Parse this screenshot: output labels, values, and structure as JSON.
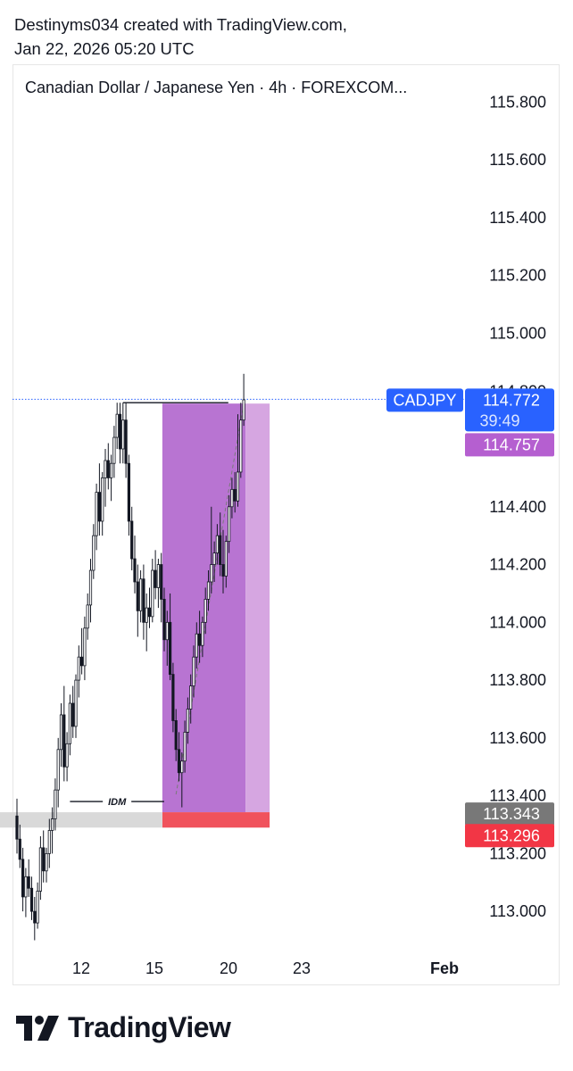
{
  "header": {
    "line1": "Destinyms034 created with TradingView.com,",
    "line2": "Jan 22, 2026 05:20 UTC"
  },
  "symbol_title": "Canadian Dollar / Japanese Yen · 4h · FOREXCOM...",
  "footer": {
    "brand": "TradingView"
  },
  "colors": {
    "price_tag": "#2962ff",
    "purple_tag": "#b55fd0",
    "gray_tag": "#787878",
    "red_tag": "#f23645",
    "zone_dark": "#b874d2",
    "zone_light": "#d6a6e1",
    "stop_zone": "#f0525c",
    "demand_zone": "#d9d9d9"
  },
  "chart_data": {
    "type": "candlestick",
    "symbol": "CADJPY",
    "timeframe": "4h",
    "ylim": [
      112.88,
      115.86
    ],
    "y_ticks": [
      "115.800",
      "115.600",
      "115.400",
      "115.200",
      "115.000",
      "114.800",
      "114.600",
      "114.400",
      "114.200",
      "114.000",
      "113.800",
      "113.600",
      "113.400",
      "113.200",
      "113.000"
    ],
    "x_ticks": [
      "12",
      "15",
      "20",
      "23",
      "Feb"
    ],
    "last_price": {
      "label": "CADJPY",
      "value": "114.772",
      "countdown": "39:49"
    },
    "price_tags": [
      {
        "value": "114.757",
        "kind": "purple"
      },
      {
        "value": "113.343",
        "kind": "gray"
      },
      {
        "value": "113.296",
        "kind": "red"
      }
    ],
    "annotations": {
      "idm_label": "IDM"
    },
    "idm_level": 113.38,
    "prior_high": 114.76,
    "long_position": {
      "entry": 113.343,
      "stop": 113.296,
      "target": 114.757
    },
    "candles": [
      [
        113.33,
        113.39,
        113.2,
        113.25
      ],
      [
        113.25,
        113.3,
        113.15,
        113.18
      ],
      [
        113.18,
        113.22,
        113.0,
        113.05
      ],
      [
        113.05,
        113.15,
        112.98,
        113.12
      ],
      [
        113.12,
        113.18,
        113.05,
        113.08
      ],
      [
        113.08,
        113.12,
        112.97,
        113.0
      ],
      [
        113.0,
        113.05,
        112.9,
        112.96
      ],
      [
        112.96,
        113.1,
        112.94,
        113.07
      ],
      [
        113.07,
        113.26,
        113.04,
        113.22
      ],
      [
        113.22,
        113.28,
        113.1,
        113.14
      ],
      [
        113.14,
        113.22,
        113.1,
        113.2
      ],
      [
        113.2,
        113.32,
        113.15,
        113.28
      ],
      [
        113.28,
        113.36,
        113.2,
        113.32
      ],
      [
        113.32,
        113.46,
        113.28,
        113.42
      ],
      [
        113.42,
        113.6,
        113.36,
        113.56
      ],
      [
        113.56,
        113.72,
        113.5,
        113.68
      ],
      [
        113.68,
        113.78,
        113.45,
        113.5
      ],
      [
        113.5,
        113.62,
        113.45,
        113.58
      ],
      [
        113.58,
        113.75,
        113.54,
        113.72
      ],
      [
        113.72,
        113.78,
        113.6,
        113.64
      ],
      [
        113.64,
        113.82,
        113.6,
        113.8
      ],
      [
        113.8,
        113.92,
        113.74,
        113.88
      ],
      [
        113.88,
        113.98,
        113.82,
        113.85
      ],
      [
        113.85,
        114.02,
        113.8,
        113.98
      ],
      [
        113.98,
        114.1,
        113.94,
        114.06
      ],
      [
        114.06,
        114.22,
        114.0,
        114.18
      ],
      [
        114.18,
        114.34,
        114.15,
        114.3
      ],
      [
        114.3,
        114.48,
        114.25,
        114.45
      ],
      [
        114.45,
        114.55,
        114.3,
        114.35
      ],
      [
        114.35,
        114.52,
        114.3,
        114.5
      ],
      [
        114.5,
        114.6,
        114.4,
        114.56
      ],
      [
        114.56,
        114.62,
        114.46,
        114.5
      ],
      [
        114.5,
        114.58,
        114.42,
        114.55
      ],
      [
        114.55,
        114.68,
        114.5,
        114.64
      ],
      [
        114.64,
        114.76,
        114.6,
        114.72
      ],
      [
        114.72,
        114.76,
        114.55,
        114.6
      ],
      [
        114.6,
        114.76,
        114.55,
        114.7
      ],
      [
        114.7,
        114.76,
        114.5,
        114.55
      ],
      [
        114.55,
        114.58,
        114.3,
        114.35
      ],
      [
        114.35,
        114.4,
        114.18,
        114.22
      ],
      [
        114.22,
        114.3,
        114.1,
        114.14
      ],
      [
        114.14,
        114.2,
        113.95,
        114.04
      ],
      [
        114.04,
        114.18,
        114.0,
        114.15
      ],
      [
        114.15,
        114.2,
        113.94,
        114.0
      ],
      [
        114.0,
        114.1,
        113.9,
        114.05
      ],
      [
        114.05,
        114.12,
        113.98,
        114.02
      ],
      [
        114.02,
        114.22,
        114.0,
        114.18
      ],
      [
        114.18,
        114.25,
        114.08,
        114.12
      ],
      [
        114.12,
        114.22,
        114.05,
        114.2
      ],
      [
        114.2,
        114.24,
        114.0,
        114.08
      ],
      [
        114.08,
        114.12,
        113.9,
        113.94
      ],
      [
        113.94,
        114.04,
        113.85,
        114.0
      ],
      [
        114.0,
        114.1,
        113.8,
        113.82
      ],
      [
        113.82,
        113.86,
        113.62,
        113.66
      ],
      [
        113.66,
        113.7,
        113.52,
        113.56
      ],
      [
        113.56,
        113.62,
        113.45,
        113.48
      ],
      [
        113.48,
        113.55,
        113.36,
        113.52
      ],
      [
        113.52,
        113.66,
        113.48,
        113.62
      ],
      [
        113.62,
        113.74,
        113.58,
        113.7
      ],
      [
        113.7,
        113.82,
        113.65,
        113.78
      ],
      [
        113.78,
        113.92,
        113.74,
        113.88
      ],
      [
        113.88,
        114.0,
        113.84,
        113.96
      ],
      [
        113.96,
        114.04,
        113.86,
        113.92
      ],
      [
        113.92,
        114.02,
        113.88,
        114.0
      ],
      [
        114.0,
        114.12,
        113.96,
        114.08
      ],
      [
        114.08,
        114.18,
        114.04,
        114.14
      ],
      [
        114.14,
        114.4,
        114.1,
        114.2
      ],
      [
        114.2,
        114.28,
        114.14,
        114.24
      ],
      [
        114.24,
        114.34,
        114.2,
        114.3
      ],
      [
        114.3,
        114.38,
        114.16,
        114.2
      ],
      [
        114.2,
        114.32,
        114.1,
        114.16
      ],
      [
        114.16,
        114.3,
        114.12,
        114.28
      ],
      [
        114.28,
        114.44,
        114.24,
        114.4
      ],
      [
        114.4,
        114.5,
        114.36,
        114.46
      ],
      [
        114.46,
        114.52,
        114.38,
        114.42
      ],
      [
        114.42,
        114.72,
        114.4,
        114.52
      ],
      [
        114.52,
        114.76,
        114.5,
        114.7
      ],
      [
        114.7,
        114.86,
        114.68,
        114.77
      ]
    ]
  }
}
